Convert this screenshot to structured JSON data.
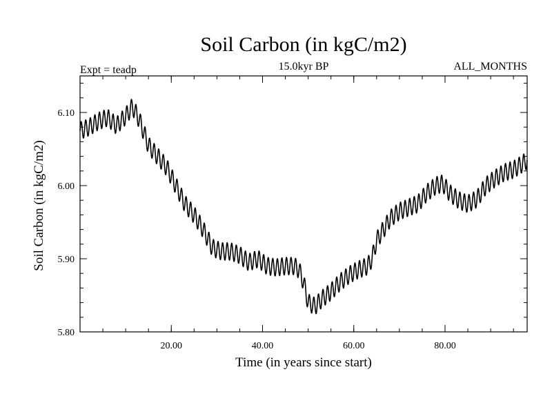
{
  "chart_data": {
    "type": "line",
    "title": "Soil Carbon (in kgC/m2)",
    "subtitle": "15.0kyr BP",
    "left_annotation": "Expt = teadp",
    "right_annotation": "ALL_MONTHS",
    "xlabel": "Time (in years since start)",
    "ylabel": "Soil Carbon (in kgC/m2)",
    "xlim": [
      0,
      98
    ],
    "ylim": [
      5.8,
      6.15
    ],
    "x_ticks": [
      {
        "value": 20,
        "label": "20.00"
      },
      {
        "value": 40,
        "label": "40.00"
      },
      {
        "value": 60,
        "label": "60.00"
      },
      {
        "value": 80,
        "label": "80.00"
      }
    ],
    "y_ticks": [
      {
        "value": 5.8,
        "label": "5.80"
      },
      {
        "value": 5.9,
        "label": "5.90"
      },
      {
        "value": 6.0,
        "label": "6.00"
      },
      {
        "value": 6.1,
        "label": "6.10"
      }
    ],
    "x_minor_step": 5,
    "y_minor_step": 0.02,
    "grid": false,
    "line_color": "#000000",
    "seasonal_amplitude": 0.012,
    "series": [
      {
        "x": [
          0,
          2,
          4,
          6,
          8,
          10,
          11.5,
          13,
          15,
          17,
          19,
          21,
          23,
          25,
          27,
          29,
          31,
          33,
          35,
          37,
          39,
          41,
          43,
          45,
          47,
          48,
          49,
          50,
          51.5,
          53,
          55,
          57,
          59,
          61,
          63,
          64,
          65,
          66,
          68,
          70,
          72,
          74,
          76,
          78,
          79.5,
          81,
          83,
          85,
          87,
          89,
          91,
          93,
          95,
          97,
          98
        ],
        "y": [
          6.075,
          6.08,
          6.088,
          6.093,
          6.082,
          6.095,
          6.108,
          6.09,
          6.055,
          6.04,
          6.025,
          6.0,
          5.975,
          5.96,
          5.94,
          5.915,
          5.91,
          5.91,
          5.905,
          5.895,
          5.9,
          5.89,
          5.888,
          5.89,
          5.89,
          5.885,
          5.868,
          5.84,
          5.835,
          5.845,
          5.855,
          5.868,
          5.878,
          5.885,
          5.89,
          5.9,
          5.925,
          5.935,
          5.955,
          5.965,
          5.97,
          5.975,
          5.99,
          6.0,
          6.003,
          5.99,
          5.98,
          5.975,
          5.982,
          6.0,
          6.01,
          6.018,
          6.022,
          6.03,
          6.035
        ]
      }
    ]
  }
}
